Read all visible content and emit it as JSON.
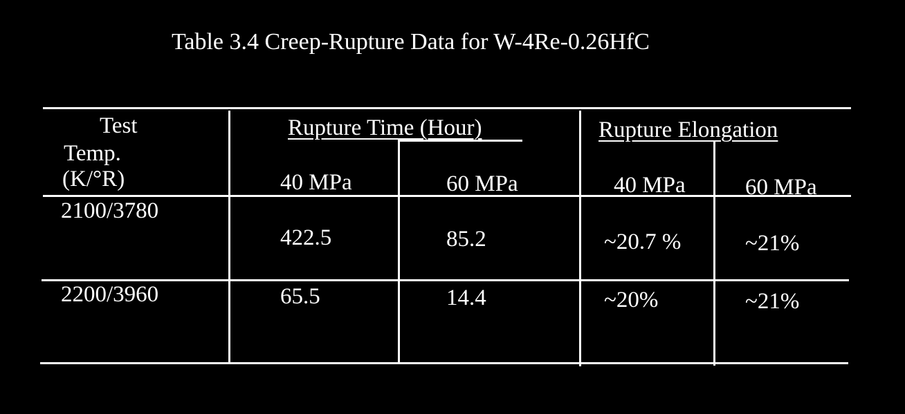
{
  "title": "Table 3.4  Creep-Rupture Data  for W-4Re-0.26HfC",
  "headers": {
    "temp_line1": "Test",
    "temp_line2": "Temp.",
    "temp_line3": "(K/°R)",
    "rupture_time": "Rupture Time (Hour)",
    "rupture_elongation": "Rupture Elongation ",
    "rt_40": "40 MPa",
    "rt_60": "60 MPa",
    "re_40": "40 MPa",
    "re_60": "60 MPa"
  },
  "rows": [
    {
      "temp": "2100/3780",
      "rt_40": "422.5",
      "rt_60": "85.2",
      "re_40": "~20.7 %",
      "re_60": "~21%"
    },
    {
      "temp": "2200/3960",
      "rt_40": "65.5",
      "rt_60": "14.4",
      "re_40": "~20%",
      "re_60": "~21%"
    }
  ]
}
